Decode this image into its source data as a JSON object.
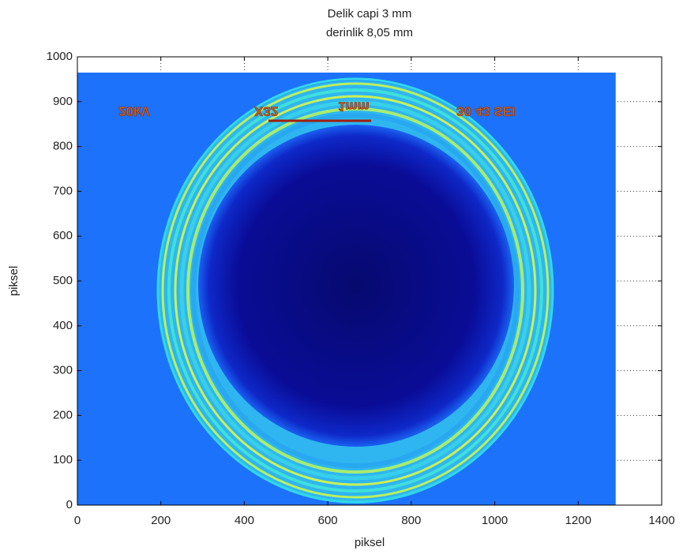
{
  "chart_data": {
    "type": "image",
    "title": [
      "Delik capi 3 mm",
      "derinlik 8,05 mm"
    ],
    "xlabel": "piksel",
    "ylabel": "piksel",
    "xlim": [
      0,
      1400
    ],
    "ylim": [
      0,
      1000
    ],
    "xticks": [
      0,
      200,
      400,
      600,
      800,
      1000,
      1200,
      1400
    ],
    "yticks": [
      0,
      100,
      200,
      300,
      400,
      500,
      600,
      700,
      800,
      900,
      1000
    ],
    "grid": true,
    "image_xlim": [
      0,
      1290
    ],
    "image_ylim": [
      0,
      965
    ],
    "image_annotations": [
      "20kV",
      "X32",
      "1mm",
      "30 43 SEI"
    ]
  }
}
